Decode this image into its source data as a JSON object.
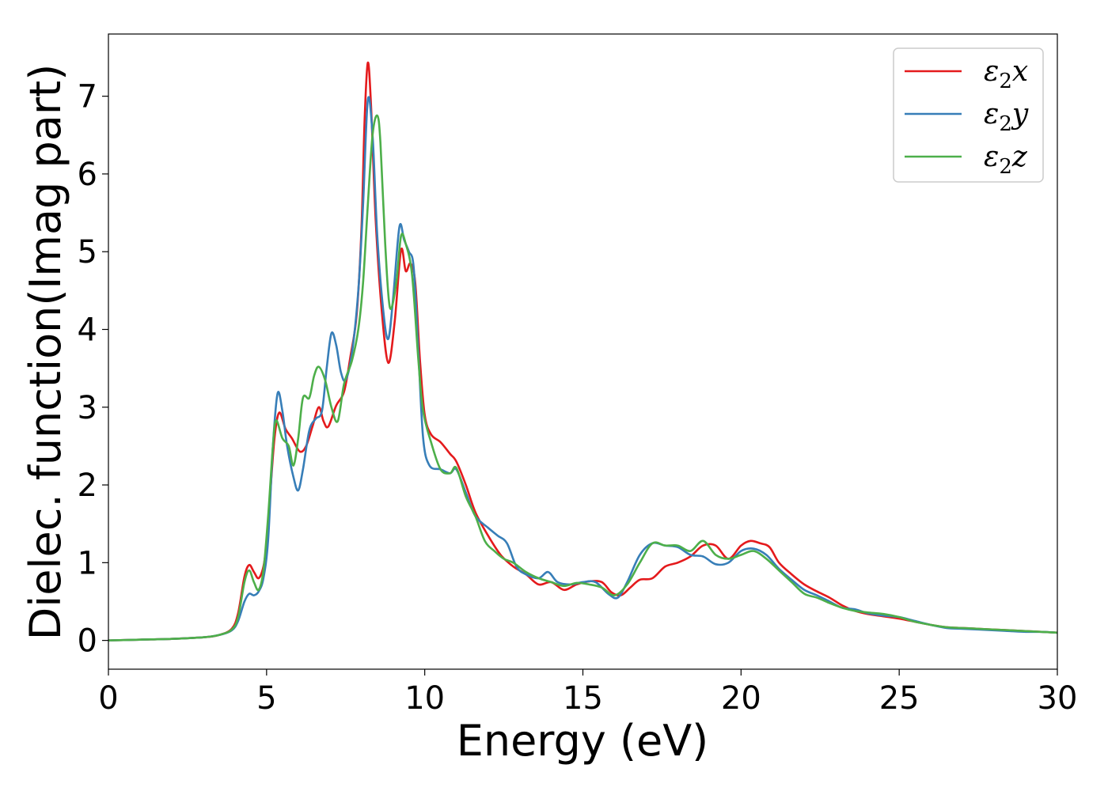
{
  "chart_data": {
    "type": "line",
    "xlabel": "Energy (eV)",
    "ylabel": "Dielec. function(Imag part)",
    "xlim": [
      0,
      30
    ],
    "ylim": [
      -0.37,
      7.8
    ],
    "xticks": [
      0,
      5,
      10,
      15,
      20,
      25,
      30
    ],
    "yticks": [
      0,
      1,
      2,
      3,
      4,
      5,
      6,
      7
    ],
    "grid": false,
    "legend_position": "top-right",
    "series": [
      {
        "name": "ε2x",
        "legend_base": "ε",
        "legend_sub": "2",
        "legend_suffix": "x",
        "color": "#e41a1c",
        "points": [
          [
            0,
            0
          ],
          [
            1,
            0.01
          ],
          [
            2,
            0.02
          ],
          [
            3,
            0.04
          ],
          [
            3.5,
            0.07
          ],
          [
            3.9,
            0.15
          ],
          [
            4.1,
            0.35
          ],
          [
            4.3,
            0.82
          ],
          [
            4.45,
            0.97
          ],
          [
            4.6,
            0.88
          ],
          [
            4.75,
            0.8
          ],
          [
            4.9,
            0.95
          ],
          [
            5.0,
            1.25
          ],
          [
            5.1,
            1.8
          ],
          [
            5.25,
            2.6
          ],
          [
            5.4,
            2.93
          ],
          [
            5.6,
            2.72
          ],
          [
            5.8,
            2.6
          ],
          [
            6.05,
            2.43
          ],
          [
            6.25,
            2.5
          ],
          [
            6.45,
            2.75
          ],
          [
            6.65,
            3.0
          ],
          [
            6.8,
            2.82
          ],
          [
            6.95,
            2.75
          ],
          [
            7.2,
            3.02
          ],
          [
            7.45,
            3.2
          ],
          [
            7.65,
            3.65
          ],
          [
            7.85,
            4.2
          ],
          [
            8.0,
            5.3
          ],
          [
            8.1,
            6.7
          ],
          [
            8.2,
            7.43
          ],
          [
            8.3,
            6.9
          ],
          [
            8.45,
            5.4
          ],
          [
            8.65,
            4.2
          ],
          [
            8.85,
            3.57
          ],
          [
            9.05,
            4.1
          ],
          [
            9.25,
            5.02
          ],
          [
            9.4,
            4.75
          ],
          [
            9.55,
            4.85
          ],
          [
            9.7,
            4.6
          ],
          [
            9.85,
            3.6
          ],
          [
            10.0,
            2.9
          ],
          [
            10.2,
            2.65
          ],
          [
            10.5,
            2.55
          ],
          [
            10.8,
            2.4
          ],
          [
            11.0,
            2.3
          ],
          [
            11.3,
            2.0
          ],
          [
            11.6,
            1.65
          ],
          [
            12.0,
            1.35
          ],
          [
            12.4,
            1.1
          ],
          [
            12.8,
            0.95
          ],
          [
            13.2,
            0.85
          ],
          [
            13.6,
            0.72
          ],
          [
            14.0,
            0.75
          ],
          [
            14.4,
            0.65
          ],
          [
            14.8,
            0.72
          ],
          [
            15.2,
            0.76
          ],
          [
            15.6,
            0.75
          ],
          [
            15.9,
            0.62
          ],
          [
            16.2,
            0.58
          ],
          [
            16.5,
            0.68
          ],
          [
            16.8,
            0.78
          ],
          [
            17.2,
            0.8
          ],
          [
            17.6,
            0.95
          ],
          [
            18.0,
            1.0
          ],
          [
            18.4,
            1.08
          ],
          [
            18.8,
            1.22
          ],
          [
            19.2,
            1.22
          ],
          [
            19.6,
            1.05
          ],
          [
            20.0,
            1.22
          ],
          [
            20.3,
            1.28
          ],
          [
            20.6,
            1.25
          ],
          [
            20.9,
            1.2
          ],
          [
            21.2,
            1.0
          ],
          [
            21.6,
            0.85
          ],
          [
            22.0,
            0.72
          ],
          [
            22.4,
            0.63
          ],
          [
            22.8,
            0.55
          ],
          [
            23.2,
            0.45
          ],
          [
            23.6,
            0.38
          ],
          [
            24.0,
            0.34
          ],
          [
            24.5,
            0.31
          ],
          [
            25.0,
            0.28
          ],
          [
            25.5,
            0.24
          ],
          [
            26.0,
            0.2
          ],
          [
            26.5,
            0.17
          ],
          [
            27.0,
            0.16
          ],
          [
            27.5,
            0.15
          ],
          [
            28.0,
            0.14
          ],
          [
            28.5,
            0.13
          ],
          [
            29.0,
            0.12
          ],
          [
            29.5,
            0.11
          ],
          [
            30.0,
            0.1
          ]
        ]
      },
      {
        "name": "ε2y",
        "legend_base": "ε",
        "legend_sub": "2",
        "legend_suffix": "y",
        "color": "#377eb8",
        "points": [
          [
            0,
            0
          ],
          [
            1,
            0.01
          ],
          [
            2,
            0.02
          ],
          [
            3,
            0.04
          ],
          [
            3.5,
            0.07
          ],
          [
            3.9,
            0.13
          ],
          [
            4.1,
            0.25
          ],
          [
            4.3,
            0.5
          ],
          [
            4.45,
            0.6
          ],
          [
            4.6,
            0.58
          ],
          [
            4.75,
            0.63
          ],
          [
            4.9,
            0.8
          ],
          [
            5.05,
            1.3
          ],
          [
            5.2,
            2.5
          ],
          [
            5.35,
            3.18
          ],
          [
            5.5,
            2.95
          ],
          [
            5.65,
            2.5
          ],
          [
            5.85,
            2.1
          ],
          [
            6.0,
            1.93
          ],
          [
            6.15,
            2.2
          ],
          [
            6.35,
            2.7
          ],
          [
            6.55,
            2.85
          ],
          [
            6.75,
            2.95
          ],
          [
            6.9,
            3.5
          ],
          [
            7.05,
            3.95
          ],
          [
            7.2,
            3.8
          ],
          [
            7.35,
            3.45
          ],
          [
            7.5,
            3.35
          ],
          [
            7.7,
            3.7
          ],
          [
            7.9,
            4.5
          ],
          [
            8.05,
            5.6
          ],
          [
            8.2,
            6.95
          ],
          [
            8.35,
            6.5
          ],
          [
            8.5,
            5.2
          ],
          [
            8.7,
            4.2
          ],
          [
            8.85,
            3.88
          ],
          [
            9.0,
            4.4
          ],
          [
            9.2,
            5.32
          ],
          [
            9.35,
            5.15
          ],
          [
            9.5,
            5.0
          ],
          [
            9.65,
            4.8
          ],
          [
            9.8,
            3.7
          ],
          [
            9.95,
            2.6
          ],
          [
            10.15,
            2.25
          ],
          [
            10.5,
            2.2
          ],
          [
            10.8,
            2.15
          ],
          [
            11.0,
            2.2
          ],
          [
            11.3,
            1.9
          ],
          [
            11.6,
            1.6
          ],
          [
            12.0,
            1.45
          ],
          [
            12.3,
            1.35
          ],
          [
            12.6,
            1.25
          ],
          [
            12.9,
            0.95
          ],
          [
            13.2,
            0.85
          ],
          [
            13.6,
            0.8
          ],
          [
            13.9,
            0.88
          ],
          [
            14.2,
            0.75
          ],
          [
            14.6,
            0.72
          ],
          [
            15.0,
            0.75
          ],
          [
            15.4,
            0.75
          ],
          [
            15.8,
            0.6
          ],
          [
            16.1,
            0.55
          ],
          [
            16.4,
            0.75
          ],
          [
            16.8,
            1.1
          ],
          [
            17.2,
            1.25
          ],
          [
            17.6,
            1.22
          ],
          [
            18.0,
            1.2
          ],
          [
            18.4,
            1.1
          ],
          [
            18.8,
            1.08
          ],
          [
            19.2,
            0.98
          ],
          [
            19.6,
            1.0
          ],
          [
            20.0,
            1.15
          ],
          [
            20.4,
            1.18
          ],
          [
            20.8,
            1.1
          ],
          [
            21.2,
            0.92
          ],
          [
            21.6,
            0.78
          ],
          [
            22.0,
            0.65
          ],
          [
            22.4,
            0.58
          ],
          [
            22.8,
            0.5
          ],
          [
            23.2,
            0.42
          ],
          [
            23.6,
            0.4
          ],
          [
            24.0,
            0.35
          ],
          [
            24.5,
            0.32
          ],
          [
            25.0,
            0.3
          ],
          [
            25.5,
            0.25
          ],
          [
            26.0,
            0.2
          ],
          [
            26.5,
            0.16
          ],
          [
            27.0,
            0.15
          ],
          [
            27.5,
            0.14
          ],
          [
            28.0,
            0.13
          ],
          [
            28.5,
            0.12
          ],
          [
            29.0,
            0.11
          ],
          [
            29.5,
            0.11
          ],
          [
            30.0,
            0.1
          ]
        ]
      },
      {
        "name": "ε2z",
        "legend_base": "ε",
        "legend_sub": "2",
        "legend_suffix": "z",
        "color": "#4daf4a",
        "points": [
          [
            0,
            0
          ],
          [
            1,
            0.01
          ],
          [
            2,
            0.02
          ],
          [
            3,
            0.04
          ],
          [
            3.5,
            0.07
          ],
          [
            3.9,
            0.14
          ],
          [
            4.1,
            0.3
          ],
          [
            4.3,
            0.75
          ],
          [
            4.45,
            0.9
          ],
          [
            4.6,
            0.75
          ],
          [
            4.75,
            0.65
          ],
          [
            4.9,
            0.9
          ],
          [
            5.05,
            1.6
          ],
          [
            5.2,
            2.5
          ],
          [
            5.3,
            2.83
          ],
          [
            5.5,
            2.6
          ],
          [
            5.7,
            2.5
          ],
          [
            5.85,
            2.25
          ],
          [
            6.0,
            2.6
          ],
          [
            6.15,
            3.12
          ],
          [
            6.35,
            3.12
          ],
          [
            6.5,
            3.4
          ],
          [
            6.65,
            3.52
          ],
          [
            6.85,
            3.35
          ],
          [
            7.05,
            3.0
          ],
          [
            7.25,
            2.82
          ],
          [
            7.45,
            3.3
          ],
          [
            7.7,
            3.6
          ],
          [
            7.9,
            4.0
          ],
          [
            8.05,
            4.6
          ],
          [
            8.2,
            5.6
          ],
          [
            8.35,
            6.5
          ],
          [
            8.5,
            6.75
          ],
          [
            8.6,
            6.4
          ],
          [
            8.75,
            5.1
          ],
          [
            8.9,
            4.28
          ],
          [
            9.1,
            4.6
          ],
          [
            9.25,
            5.2
          ],
          [
            9.4,
            5.1
          ],
          [
            9.6,
            4.7
          ],
          [
            9.8,
            3.6
          ],
          [
            9.95,
            2.95
          ],
          [
            10.2,
            2.55
          ],
          [
            10.5,
            2.2
          ],
          [
            10.8,
            2.15
          ],
          [
            11.0,
            2.22
          ],
          [
            11.3,
            1.85
          ],
          [
            11.6,
            1.6
          ],
          [
            11.9,
            1.28
          ],
          [
            12.2,
            1.15
          ],
          [
            12.5,
            1.05
          ],
          [
            12.8,
            1.0
          ],
          [
            13.2,
            0.88
          ],
          [
            13.6,
            0.8
          ],
          [
            14.0,
            0.75
          ],
          [
            14.4,
            0.7
          ],
          [
            14.8,
            0.74
          ],
          [
            15.2,
            0.72
          ],
          [
            15.6,
            0.68
          ],
          [
            16.0,
            0.58
          ],
          [
            16.4,
            0.72
          ],
          [
            16.8,
            1.0
          ],
          [
            17.2,
            1.25
          ],
          [
            17.6,
            1.22
          ],
          [
            18.0,
            1.22
          ],
          [
            18.4,
            1.15
          ],
          [
            18.8,
            1.28
          ],
          [
            19.2,
            1.1
          ],
          [
            19.6,
            1.05
          ],
          [
            20.0,
            1.1
          ],
          [
            20.4,
            1.15
          ],
          [
            20.8,
            1.05
          ],
          [
            21.2,
            0.9
          ],
          [
            21.6,
            0.75
          ],
          [
            22.0,
            0.6
          ],
          [
            22.4,
            0.55
          ],
          [
            22.8,
            0.48
          ],
          [
            23.2,
            0.42
          ],
          [
            23.6,
            0.38
          ],
          [
            24.0,
            0.36
          ],
          [
            24.5,
            0.34
          ],
          [
            25.0,
            0.3
          ],
          [
            25.5,
            0.24
          ],
          [
            26.0,
            0.2
          ],
          [
            26.5,
            0.17
          ],
          [
            27.0,
            0.16
          ],
          [
            27.5,
            0.15
          ],
          [
            28.0,
            0.14
          ],
          [
            28.5,
            0.13
          ],
          [
            29.0,
            0.12
          ],
          [
            29.5,
            0.11
          ],
          [
            30.0,
            0.1
          ]
        ]
      }
    ]
  }
}
